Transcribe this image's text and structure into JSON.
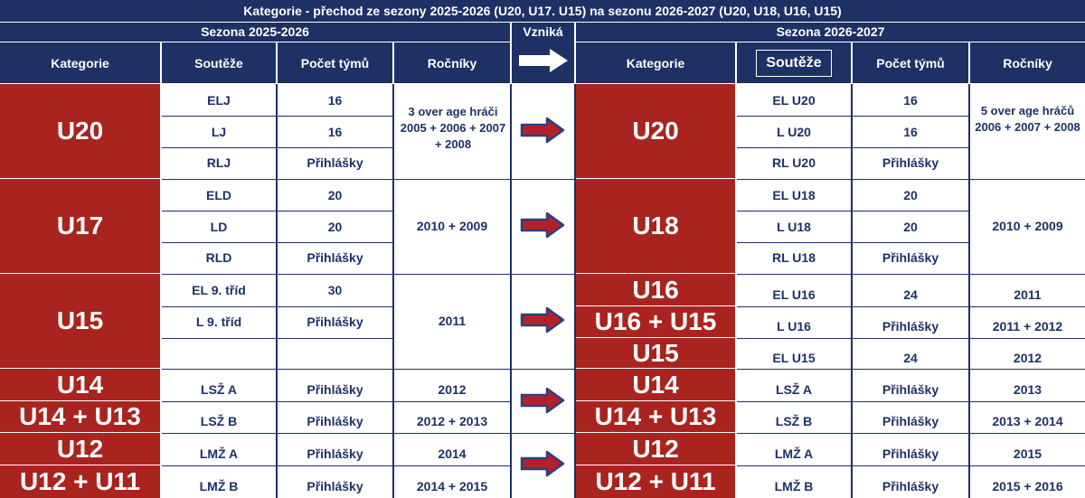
{
  "title": "Kategorie - přechod ze  sezony 2025-2026   (U20, U17. U15) na sezonu 2026-2027 (U20, U18, U16, U15)",
  "season_left": "Sezona 2025-2026",
  "season_right": "Sezona 2026-2027",
  "vznika": "Vzniká",
  "headers": {
    "kategorie": "Kategorie",
    "souteze": "Soutěže",
    "pocet": "Počet týmů",
    "rocniky": "Ročníky"
  },
  "left": {
    "categories": [
      "U20",
      "U17",
      "U15",
      "U14",
      "U14 + U13",
      "U12",
      "U12 + U11"
    ],
    "competitions": [
      "ELJ",
      "LJ",
      "RLJ",
      "ELD",
      "LD",
      "RLD",
      "EL 9. tříd",
      "L 9. tříd",
      "",
      "LSŽ A",
      "LSŽ B",
      "LMŽ A",
      "LMŽ B"
    ],
    "teams": [
      "16",
      "16",
      "Přihlášky",
      "20",
      "20",
      "Přihlášky",
      "30",
      "Přihlášky",
      "",
      "Přihlášky",
      "Přihlášky",
      "Přihlášky",
      "Přihlášky"
    ],
    "years": [
      "3 over age hráči 2005 + 2006 + 2007 + 2008",
      "2010 + 2009",
      "2011",
      "2012",
      "2012 + 2013",
      "2014",
      "2014 + 2015"
    ]
  },
  "right": {
    "categories": [
      "U20",
      "U18",
      "U16",
      "U16 + U15",
      "U15",
      "U14",
      "U14 + U13",
      "U12",
      "U12 + U11"
    ],
    "competitions": [
      "EL U20",
      "L U20",
      "RL U20",
      "EL U18",
      "L U18",
      "RL U18",
      "EL U16",
      "L U16",
      "EL U15",
      "LSŽ A",
      "LSŽ B",
      "LMŽ A",
      "LMŽ B"
    ],
    "teams": [
      "16",
      "16",
      "Přihlášky",
      "20",
      "20",
      "Přihlášky",
      "24",
      "Přihlášky",
      "24",
      "Přihlášky",
      "Přihlášky",
      "Přihlášky",
      "Přihlášky"
    ],
    "years": [
      "5 over age hráčů 2006 + 2007 + 2008",
      "2010 + 2009",
      "2011",
      "2011 + 2012",
      "2012",
      "2013",
      "2013 + 2014",
      "2015",
      "2015 + 2016"
    ]
  },
  "colors": {
    "navy": "#1f3064",
    "red": "#a9241f",
    "arrow_red": "#b4202a",
    "arrow_blue": "#2b3f80"
  },
  "icons": [
    "transition-arrow-icon",
    "row-arrow-icon"
  ]
}
